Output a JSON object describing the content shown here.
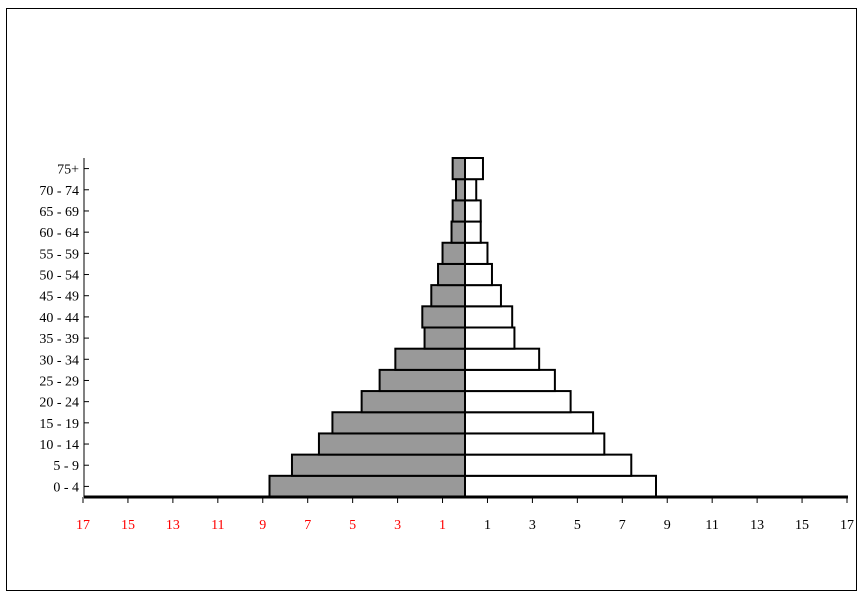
{
  "chart_data": {
    "type": "bar",
    "orientation": "horizontal-pyramid",
    "title": "",
    "xlabel": "",
    "ylabel": "",
    "categories": [
      "0 - 4",
      "5 - 9",
      "10 - 14",
      "15 - 19",
      "20 - 24",
      "25 - 29",
      "30 - 34",
      "35 - 39",
      "40 - 44",
      "45 - 49",
      "50 - 54",
      "55 - 59",
      "60 - 64",
      "65 - 69",
      "70 - 74",
      "75+"
    ],
    "series": [
      {
        "side": "left",
        "color": "#999999",
        "values": [
          8.7,
          7.7,
          6.5,
          5.9,
          4.6,
          3.8,
          3.1,
          1.8,
          1.9,
          1.5,
          1.2,
          1.0,
          0.6,
          0.55,
          0.4,
          0.55
        ]
      },
      {
        "side": "right",
        "color": "#ffffff",
        "values": [
          8.5,
          7.4,
          6.2,
          5.7,
          4.7,
          4.0,
          3.3,
          2.2,
          2.1,
          1.6,
          1.2,
          1.0,
          0.7,
          0.7,
          0.5,
          0.8
        ]
      }
    ],
    "xlim": [
      -17,
      17
    ],
    "ticks": [
      {
        "value": -17,
        "label": "17"
      },
      {
        "value": -15,
        "label": "15"
      },
      {
        "value": -13,
        "label": "13"
      },
      {
        "value": -11,
        "label": "11"
      },
      {
        "value": -9,
        "label": "9"
      },
      {
        "value": -7,
        "label": "7"
      },
      {
        "value": -5,
        "label": "5"
      },
      {
        "value": -3,
        "label": "3"
      },
      {
        "value": -1,
        "label": "1"
      },
      {
        "value": 1,
        "label": "1"
      },
      {
        "value": 3,
        "label": "3"
      },
      {
        "value": 5,
        "label": "5"
      },
      {
        "value": 7,
        "label": "7"
      },
      {
        "value": 9,
        "label": "9"
      },
      {
        "value": 11,
        "label": "11"
      },
      {
        "value": 13,
        "label": "13"
      },
      {
        "value": 15,
        "label": "15"
      },
      {
        "value": 17,
        "label": "17"
      }
    ],
    "left_tick_color": "#ff0000",
    "right_tick_color": "#000000",
    "grid": false,
    "legend": "none"
  }
}
